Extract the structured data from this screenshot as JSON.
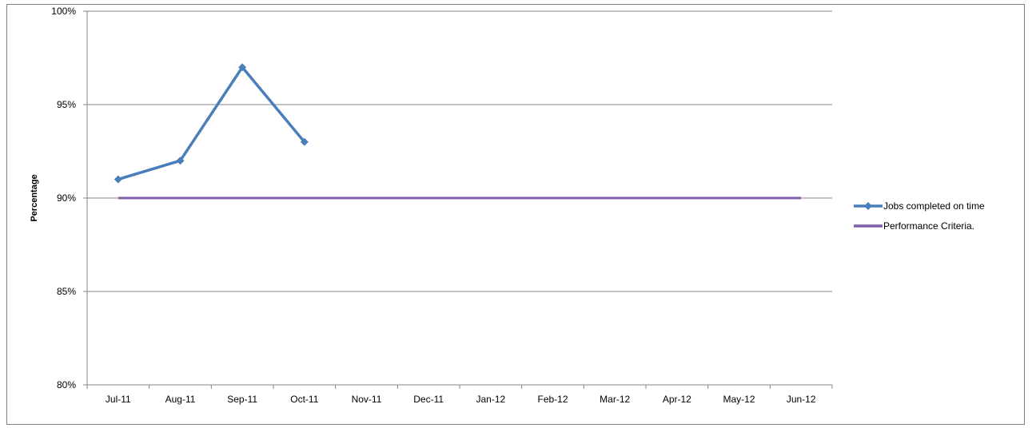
{
  "chart_data": {
    "type": "line",
    "title": "",
    "xlabel": "",
    "ylabel": "Percentage",
    "categories": [
      "Jul-11",
      "Aug-11",
      "Sep-11",
      "Oct-11",
      "Nov-11",
      "Dec-11",
      "Jan-12",
      "Feb-12",
      "Mar-12",
      "Apr-12",
      "May-12",
      "Jun-12"
    ],
    "ylim": [
      80,
      100
    ],
    "y_ticks": [
      80,
      85,
      90,
      95,
      100
    ],
    "y_tick_labels": [
      "80%",
      "85%",
      "90%",
      "95%",
      "100%"
    ],
    "grid": "horizontal",
    "legend_position": "right",
    "series": [
      {
        "name": "Jobs completed on time",
        "values": [
          91,
          92,
          97,
          93,
          null,
          null,
          null,
          null,
          null,
          null,
          null,
          null
        ],
        "color": "#4a7ebb",
        "marker": "diamond"
      },
      {
        "name": "Performance Criteria.",
        "values": [
          90,
          90,
          90,
          90,
          90,
          90,
          90,
          90,
          90,
          90,
          90,
          90
        ],
        "color": "#7f5fa9",
        "marker": "none"
      }
    ]
  }
}
